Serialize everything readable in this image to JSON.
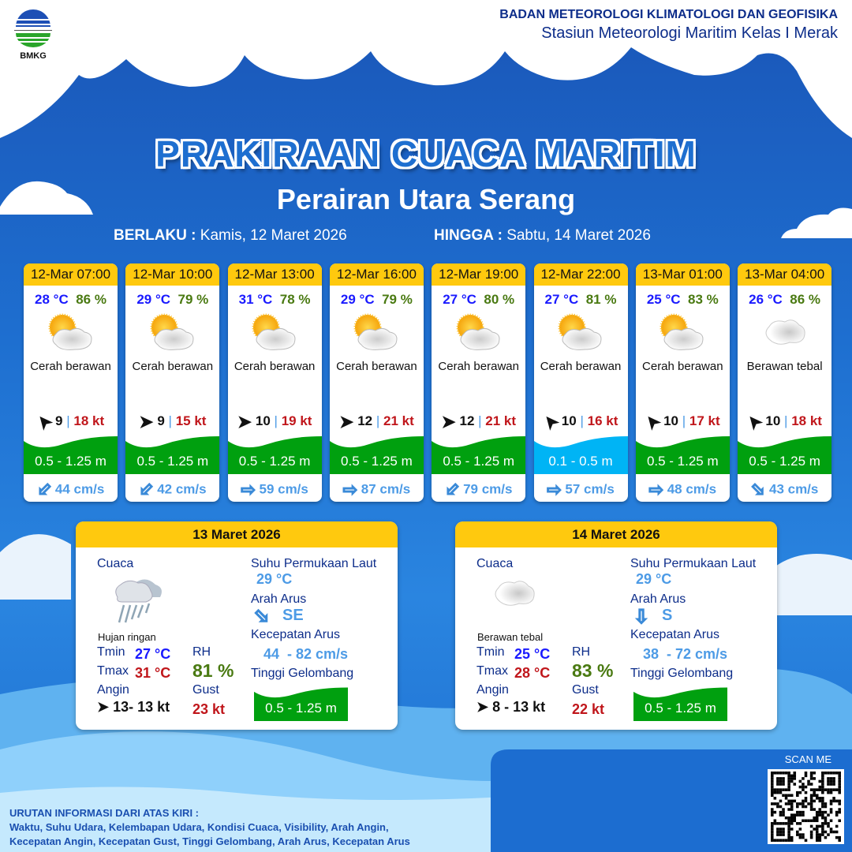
{
  "header": {
    "logo_text": "BMKG",
    "org_name": "BADAN METEOROLOGI KLIMATOLOGI DAN GEOFISIKA",
    "station": "Stasiun Meteorologi Maritim Kelas I Merak",
    "title": "PRAKIRAAN CUACA MARITIM",
    "area": "Perairan Utara Serang",
    "valid_from_label": "BERLAKU :",
    "valid_from": "Kamis, 12 Maret 2026",
    "valid_to_label": "HINGGA :",
    "valid_to": "Sabtu, 14 Maret 2026"
  },
  "colors": {
    "header_yellow": "#ffc90e",
    "wave_green": "#00a00f",
    "wave_cyan": "#00b4f5",
    "temp": "#1a1aff",
    "rh": "#4a7a12",
    "gust": "#c0161b",
    "current": "#4d9be6"
  },
  "forecasts": [
    {
      "time": "12-Mar 07:00",
      "temp": "28 °C",
      "rh": "86 %",
      "icon": "partly-cloudy-icon",
      "weather": "Cerah berawan",
      "wind_dir": "northwest-arrow",
      "wind_speed": "9",
      "gust": "18 kt",
      "wave": "0.5 - 1.25 m",
      "wave_color": "green",
      "current_dir": "southwest-arrow",
      "current_speed": "44 cm/s"
    },
    {
      "time": "12-Mar 10:00",
      "temp": "29 °C",
      "rh": "79 %",
      "icon": "partly-cloudy-icon",
      "weather": "Cerah berawan",
      "wind_dir": "east-arrow",
      "wind_speed": "9",
      "gust": "15 kt",
      "wave": "0.5 - 1.25 m",
      "wave_color": "green",
      "current_dir": "southwest-arrow",
      "current_speed": "42 cm/s"
    },
    {
      "time": "12-Mar 13:00",
      "temp": "31 °C",
      "rh": "78 %",
      "icon": "partly-cloudy-icon",
      "weather": "Cerah berawan",
      "wind_dir": "east-arrow",
      "wind_speed": "10",
      "gust": "19 kt",
      "wave": "0.5 - 1.25 m",
      "wave_color": "green",
      "current_dir": "east-arrow",
      "current_speed": "59 cm/s"
    },
    {
      "time": "12-Mar 16:00",
      "temp": "29 °C",
      "rh": "79 %",
      "icon": "partly-cloudy-icon",
      "weather": "Cerah berawan",
      "wind_dir": "east-arrow",
      "wind_speed": "12",
      "gust": "21 kt",
      "wave": "0.5 - 1.25 m",
      "wave_color": "green",
      "current_dir": "east-arrow",
      "current_speed": "87 cm/s"
    },
    {
      "time": "12-Mar 19:00",
      "temp": "27 °C",
      "rh": "80 %",
      "icon": "partly-cloudy-icon",
      "weather": "Cerah berawan",
      "wind_dir": "east-arrow",
      "wind_speed": "12",
      "gust": "21 kt",
      "wave": "0.5 - 1.25 m",
      "wave_color": "green",
      "current_dir": "southwest-arrow",
      "current_speed": "79 cm/s"
    },
    {
      "time": "12-Mar 22:00",
      "temp": "27 °C",
      "rh": "81 %",
      "icon": "partly-cloudy-icon",
      "weather": "Cerah berawan",
      "wind_dir": "northwest-arrow",
      "wind_speed": "10",
      "gust": "16 kt",
      "wave": "0.1 - 0.5 m",
      "wave_color": "cyan",
      "current_dir": "east-arrow",
      "current_speed": "57 cm/s"
    },
    {
      "time": "13-Mar 01:00",
      "temp": "25 °C",
      "rh": "83 %",
      "icon": "partly-cloudy-icon",
      "weather": "Cerah berawan",
      "wind_dir": "northwest-arrow",
      "wind_speed": "10",
      "gust": "17 kt",
      "wave": "0.5 - 1.25 m",
      "wave_color": "green",
      "current_dir": "east-arrow",
      "current_speed": "48 cm/s"
    },
    {
      "time": "13-Mar 04:00",
      "temp": "26 °C",
      "rh": "86 %",
      "icon": "cloudy-icon",
      "weather": "Berawan tebal",
      "wind_dir": "northwest-arrow",
      "wind_speed": "10",
      "gust": "18 kt",
      "wave": "0.5 - 1.25 m",
      "wave_color": "green",
      "current_dir": "southeast-arrow",
      "current_speed": "43 cm/s"
    }
  ],
  "labels": {
    "cuaca": "Cuaca",
    "tmin": "Tmin",
    "tmax": "Tmax",
    "rh": "RH",
    "angin": "Angin",
    "gust": "Gust",
    "sst": "Suhu Permukaan Laut",
    "arah_arus": "Arah Arus",
    "kec_arus": "Kecepatan Arus",
    "tinggi": "Tinggi Gelombang"
  },
  "daily": [
    {
      "date": "13 Maret 2026",
      "icon": "light-rain-icon",
      "weather": "Hujan ringan",
      "tmin": "27 °C",
      "tmax": "31 °C",
      "rh": "81 %",
      "wind": "13- 13 kt",
      "gust": "23 kt",
      "sst": "29 °C",
      "current_dir": "SE",
      "current_speed": "44  - 82 cm/s",
      "wave": "0.5 - 1.25 m"
    },
    {
      "date": "14 Maret 2026",
      "icon": "cloudy-icon",
      "weather": "Berawan tebal",
      "tmin": "25 °C",
      "tmax": "28 °C",
      "rh": "83 %",
      "wind": "8  - 13 kt",
      "gust": "22 kt",
      "sst": "29 °C",
      "current_dir": "S",
      "current_speed": "38  - 72 cm/s",
      "wave": "0.5 - 1.25 m"
    }
  ],
  "footer": {
    "scan": "SCAN ME",
    "info_title": "URUTAN INFORMASI DARI ATAS KIRI :",
    "info_line1": "Waktu, Suhu Udara, Kelembapan Udara, Kondisi Cuaca, Visibility, Arah Angin,",
    "info_line2": "Kecepatan Angin, Kecepatan Gust, Tinggi Gelombang, Arah Arus, Kecepatan Arus"
  }
}
